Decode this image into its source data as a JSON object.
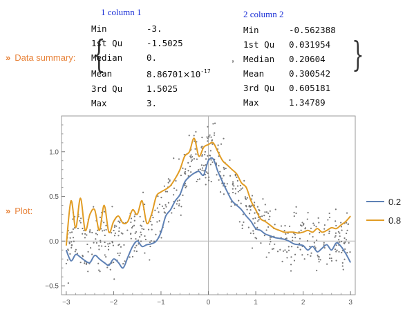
{
  "summary": {
    "label": "Data summary:",
    "arrow": "»",
    "separator": ",",
    "columns": [
      {
        "name": "1 column 1",
        "rows": [
          {
            "stat": "Min",
            "value": "-3."
          },
          {
            "stat": "1st Qu",
            "value": "-1.5025"
          },
          {
            "stat": "Median",
            "value": "0."
          },
          {
            "stat": "Mean",
            "value": "8.86701",
            "times": "×",
            "exp_base": "10",
            "exp": "-17"
          },
          {
            "stat": "3rd Qu",
            "value": "1.5025"
          },
          {
            "stat": "Max",
            "value": "3."
          }
        ]
      },
      {
        "name": "2 column 2",
        "rows": [
          {
            "stat": "Min",
            "value": "-0.562388"
          },
          {
            "stat": "1st Qu",
            "value": "0.031954"
          },
          {
            "stat": "Median",
            "value": "0.20604"
          },
          {
            "stat": "Mean",
            "value": "0.300542"
          },
          {
            "stat": "3rd Qu",
            "value": "0.605181"
          },
          {
            "stat": "Max",
            "value": "1.34789"
          }
        ]
      }
    ]
  },
  "plot": {
    "label": "Plot:",
    "arrow": "»"
  },
  "chart_data": {
    "type": "scatter",
    "xlim": [
      -3.1,
      3.1
    ],
    "ylim": [
      -0.6,
      1.4
    ],
    "x_ticks": [
      -3,
      -2,
      -1,
      0,
      1,
      2,
      3
    ],
    "y_ticks": [
      -0.5,
      0.0,
      0.5,
      1.0
    ],
    "x_tick_labels": [
      "−3",
      "−2",
      "−1",
      "0",
      "1",
      "2",
      "3"
    ],
    "y_tick_labels": [
      "−0.5",
      "0.0",
      "0.5",
      "1.0"
    ],
    "grid": false,
    "legend_position": "right",
    "series": [
      {
        "name": "0.2",
        "color": "#5e81b5",
        "x": [
          -3.0,
          -2.9,
          -2.8,
          -2.7,
          -2.6,
          -2.5,
          -2.4,
          -2.3,
          -2.2,
          -2.1,
          -2.0,
          -1.9,
          -1.8,
          -1.7,
          -1.6,
          -1.5,
          -1.4,
          -1.3,
          -1.2,
          -1.1,
          -1.0,
          -0.9,
          -0.8,
          -0.7,
          -0.6,
          -0.5,
          -0.4,
          -0.3,
          -0.2,
          -0.1,
          0.0,
          0.1,
          0.2,
          0.3,
          0.4,
          0.5,
          0.6,
          0.7,
          0.8,
          0.9,
          1.0,
          1.1,
          1.2,
          1.3,
          1.4,
          1.5,
          1.6,
          1.7,
          1.8,
          1.9,
          2.0,
          2.1,
          2.2,
          2.3,
          2.4,
          2.5,
          2.6,
          2.7,
          2.8,
          2.9,
          3.0
        ],
        "y": [
          -0.1,
          -0.22,
          -0.15,
          -0.18,
          -0.22,
          -0.24,
          -0.16,
          -0.2,
          -0.24,
          -0.27,
          -0.2,
          -0.24,
          -0.3,
          -0.18,
          -0.06,
          0.0,
          -0.06,
          -0.04,
          -0.03,
          0.0,
          0.1,
          0.28,
          0.35,
          0.45,
          0.52,
          0.66,
          0.72,
          0.76,
          0.78,
          0.74,
          0.9,
          0.92,
          0.78,
          0.66,
          0.55,
          0.45,
          0.4,
          0.35,
          0.28,
          0.22,
          0.14,
          0.12,
          0.08,
          0.06,
          0.04,
          0.03,
          0.02,
          0.0,
          -0.03,
          -0.04,
          -0.05,
          -0.1,
          -0.06,
          -0.12,
          -0.08,
          -0.04,
          -0.1,
          -0.02,
          -0.06,
          -0.14,
          -0.24
        ]
      },
      {
        "name": "0.8",
        "color": "#e19c24",
        "x": [
          -3.0,
          -2.9,
          -2.8,
          -2.7,
          -2.6,
          -2.5,
          -2.4,
          -2.3,
          -2.2,
          -2.1,
          -2.0,
          -1.9,
          -1.8,
          -1.7,
          -1.6,
          -1.5,
          -1.4,
          -1.3,
          -1.2,
          -1.1,
          -1.0,
          -0.9,
          -0.8,
          -0.7,
          -0.6,
          -0.5,
          -0.4,
          -0.3,
          -0.2,
          -0.1,
          0.0,
          0.1,
          0.2,
          0.3,
          0.4,
          0.5,
          0.6,
          0.7,
          0.8,
          0.9,
          1.0,
          1.1,
          1.2,
          1.3,
          1.4,
          1.5,
          1.6,
          1.7,
          1.8,
          1.9,
          2.0,
          2.1,
          2.2,
          2.3,
          2.4,
          2.5,
          2.6,
          2.7,
          2.8,
          2.9,
          3.0
        ],
        "y": [
          -0.05,
          0.45,
          0.15,
          0.48,
          0.12,
          0.3,
          0.35,
          0.12,
          0.4,
          0.1,
          0.22,
          0.28,
          0.2,
          0.22,
          0.35,
          0.3,
          0.45,
          0.2,
          0.3,
          0.5,
          0.55,
          0.58,
          0.62,
          0.7,
          0.8,
          0.95,
          1.0,
          1.15,
          0.95,
          1.05,
          1.08,
          1.1,
          1.0,
          0.9,
          0.85,
          0.8,
          0.75,
          0.65,
          0.6,
          0.45,
          0.35,
          0.25,
          0.22,
          0.18,
          0.14,
          0.12,
          0.1,
          0.1,
          0.1,
          0.09,
          0.1,
          0.12,
          0.1,
          0.14,
          0.1,
          0.12,
          0.15,
          0.14,
          0.18,
          0.22,
          0.28
        ]
      }
    ],
    "points_color": "#777777"
  }
}
